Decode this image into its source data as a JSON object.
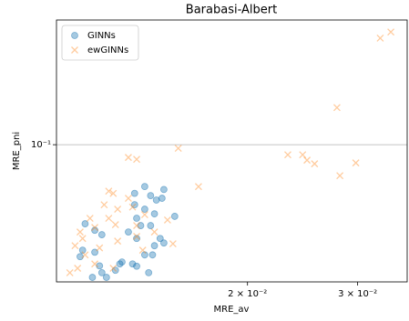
{
  "chart_data": {
    "type": "scatter",
    "title": "Barabasi-Albert",
    "x_label": "MRE_av",
    "y_label": "MRE_pni",
    "xscale": "log",
    "yscale": "log",
    "grid": "y",
    "legend": "upper left",
    "xlim": [
      0.0099,
      0.036
    ],
    "ylim": [
      0.0288,
      0.31
    ],
    "xticks": [
      {
        "value": 0.02,
        "label": "2 × 10⁻²"
      },
      {
        "value": 0.03,
        "label": "3 × 10⁻²"
      }
    ],
    "yticks": [
      {
        "value": 0.1,
        "label": "10⁻¹"
      }
    ],
    "series": [
      {
        "name": "GINNs",
        "color": "#1f77b4",
        "marker": "o",
        "x": [
          0.0137,
          0.0147,
          0.0132,
          0.014,
          0.0143,
          0.0132,
          0.0146,
          0.0137,
          0.0133,
          0.0153,
          0.0135,
          0.014,
          0.011,
          0.0114,
          0.0117,
          0.0129,
          0.0133,
          0.0145,
          0.0142,
          0.0137,
          0.0141,
          0.0147,
          0.0126,
          0.0131,
          0.0125,
          0.0133,
          0.0109,
          0.0114,
          0.0108,
          0.0116,
          0.0117,
          0.0119,
          0.0113,
          0.0123,
          0.0139,
          0.0142
        ],
        "values": [
          0.0684,
          0.0666,
          0.0643,
          0.063,
          0.0605,
          0.058,
          0.0615,
          0.0557,
          0.0513,
          0.0522,
          0.048,
          0.048,
          0.0488,
          0.046,
          0.0442,
          0.0453,
          0.0427,
          0.0427,
          0.04,
          0.0368,
          0.0368,
          0.041,
          0.0345,
          0.0339,
          0.0339,
          0.0332,
          0.0384,
          0.0377,
          0.0362,
          0.0333,
          0.0313,
          0.03,
          0.03,
          0.032,
          0.0313,
          0.0534
        ]
      },
      {
        "name": "ewGINNs",
        "color": "#ff7f0e",
        "marker": "x",
        "x": [
          0.0326,
          0.0339,
          0.0278,
          0.0155,
          0.0129,
          0.0133,
          0.0232,
          0.0245,
          0.0249,
          0.0256,
          0.0298,
          0.0281,
          0.0167,
          0.012,
          0.0122,
          0.0129,
          0.0118,
          0.0124,
          0.0131,
          0.0137,
          0.0112,
          0.012,
          0.0114,
          0.0123,
          0.0133,
          0.0149,
          0.0152,
          0.0108,
          0.0109,
          0.0106,
          0.0116,
          0.0124,
          0.0133,
          0.0142,
          0.0104,
          0.011,
          0.0114,
          0.0122,
          0.0107,
          0.0136
        ],
        "values": [
          0.263,
          0.278,
          0.14,
          0.0968,
          0.0891,
          0.0876,
          0.0913,
          0.0913,
          0.0869,
          0.0841,
          0.0848,
          0.0755,
          0.0684,
          0.0656,
          0.0643,
          0.0615,
          0.058,
          0.0557,
          0.0568,
          0.053,
          0.0513,
          0.0513,
          0.0472,
          0.0484,
          0.048,
          0.0505,
          0.0407,
          0.0453,
          0.0427,
          0.04,
          0.0392,
          0.0417,
          0.0435,
          0.0453,
          0.0313,
          0.0368,
          0.0339,
          0.0326,
          0.0326,
          0.0384
        ]
      }
    ]
  }
}
